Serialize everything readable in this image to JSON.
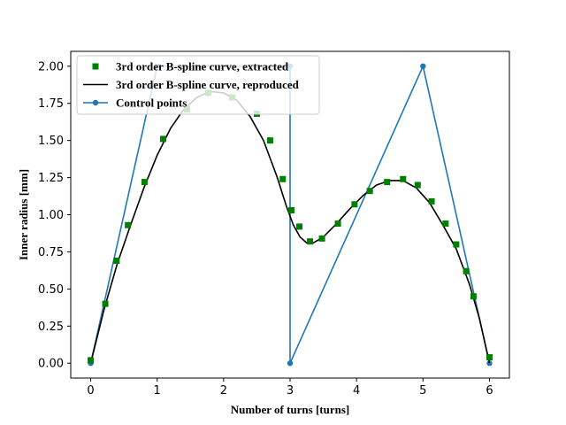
{
  "chart_data": {
    "type": "line",
    "xlabel": "Number of turns [turns]",
    "ylabel": "Inner radius [mm]",
    "xlim": [
      -0.3,
      6.3
    ],
    "ylim": [
      -0.1,
      2.1
    ],
    "x_ticks": [
      0,
      1,
      2,
      3,
      4,
      5,
      6
    ],
    "y_ticks": [
      0.0,
      0.25,
      0.5,
      0.75,
      1.0,
      1.25,
      1.5,
      1.75,
      2.0
    ],
    "x_tick_labels": [
      "0",
      "1",
      "2",
      "3",
      "4",
      "5",
      "6"
    ],
    "y_tick_labels": [
      "0.00",
      "0.25",
      "0.50",
      "0.75",
      "1.00",
      "1.25",
      "1.50",
      "1.75",
      "2.00"
    ],
    "legend_position": "upper-left",
    "grid": false,
    "series": [
      {
        "name": "3rd order B-spline curve, extracted",
        "style": "markers",
        "marker": "square",
        "color": "#008000",
        "x": [
          0.0,
          0.22,
          0.39,
          0.56,
          0.81,
          1.09,
          1.45,
          1.77,
          2.13,
          2.5,
          2.7,
          2.89,
          3.02,
          3.14,
          3.3,
          3.48,
          3.72,
          3.97,
          4.2,
          4.46,
          4.7,
          4.92,
          5.13,
          5.34,
          5.5,
          5.65,
          5.76,
          6.0
        ],
        "y": [
          0.02,
          0.4,
          0.69,
          0.93,
          1.22,
          1.51,
          1.71,
          1.82,
          1.79,
          1.68,
          1.5,
          1.24,
          1.03,
          0.92,
          0.82,
          0.84,
          0.94,
          1.07,
          1.16,
          1.22,
          1.24,
          1.2,
          1.09,
          0.94,
          0.8,
          0.62,
          0.45,
          0.04
        ]
      },
      {
        "name": "3rd order B-spline curve, reproduced",
        "style": "line",
        "color": "#000000",
        "x": [
          0.0,
          0.2,
          0.4,
          0.6,
          0.8,
          1.0,
          1.2,
          1.4,
          1.6,
          1.8,
          2.0,
          2.2,
          2.4,
          2.6,
          2.8,
          2.95,
          3.05,
          3.15,
          3.25,
          3.35,
          3.5,
          3.7,
          3.9,
          4.1,
          4.3,
          4.5,
          4.7,
          4.9,
          5.1,
          5.3,
          5.5,
          5.7,
          5.85,
          6.0
        ],
        "y": [
          0.0,
          0.36,
          0.67,
          0.93,
          1.18,
          1.4,
          1.58,
          1.71,
          1.79,
          1.83,
          1.82,
          1.77,
          1.66,
          1.5,
          1.26,
          1.05,
          0.93,
          0.85,
          0.81,
          0.81,
          0.85,
          0.94,
          1.04,
          1.13,
          1.2,
          1.23,
          1.23,
          1.18,
          1.08,
          0.93,
          0.77,
          0.53,
          0.3,
          0.0
        ]
      },
      {
        "name": "Control points",
        "style": "line+markers",
        "marker": "circle",
        "color": "#1f77b4",
        "x": [
          0,
          1,
          3,
          3,
          5,
          6
        ],
        "y": [
          0,
          2,
          2,
          0,
          2,
          0
        ]
      }
    ]
  }
}
